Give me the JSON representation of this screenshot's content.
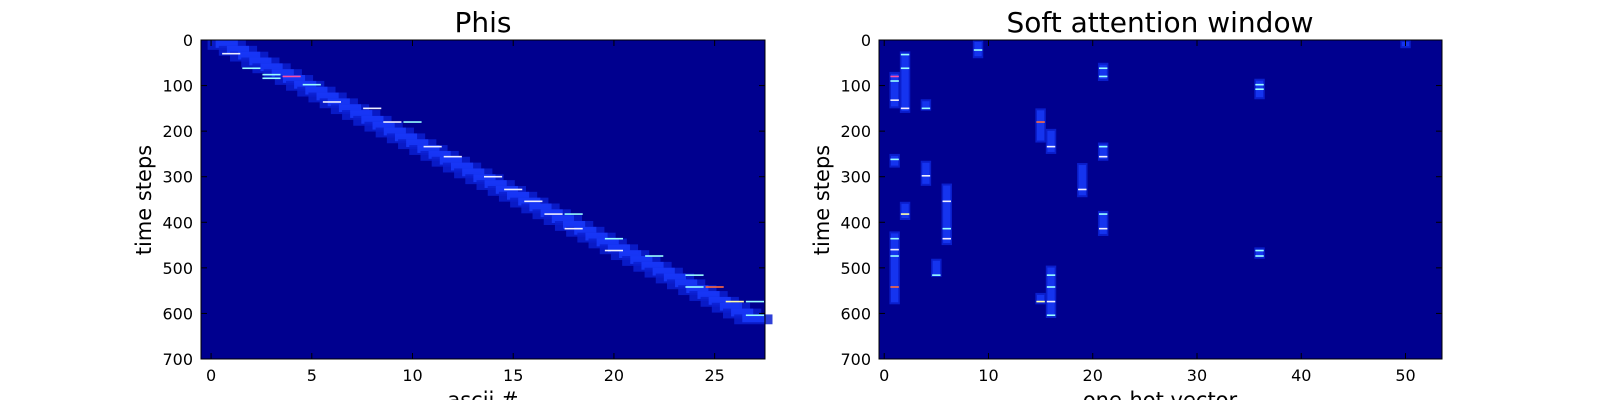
{
  "chart_data": [
    {
      "type": "heatmap",
      "title": "Phis",
      "xlabel": "ascii #",
      "ylabel": "time steps",
      "xlim": [
        -0.5,
        27.5
      ],
      "ylim": [
        700,
        0
      ],
      "xticks": [
        0,
        5,
        10,
        15,
        20,
        25
      ],
      "yticks": [
        0,
        100,
        200,
        300,
        400,
        500,
        600,
        700
      ],
      "colormap": "jet",
      "background_color": "#00008f",
      "band": {
        "start_step": 0,
        "end_step": 615,
        "start_col": 0.5,
        "end_col": 27.2
      },
      "highlights": [
        {
          "x": 1,
          "y": 30,
          "c": "#eef"
        },
        {
          "x": 2,
          "y": 62,
          "c": "#9ff"
        },
        {
          "x": 3,
          "y": 76,
          "c": "#9ff"
        },
        {
          "x": 3,
          "y": 84,
          "c": "#9ff"
        },
        {
          "x": 4,
          "y": 80,
          "c": "#ff4da6"
        },
        {
          "x": 5,
          "y": 98,
          "c": "#9ff"
        },
        {
          "x": 6,
          "y": 136,
          "c": "#eef"
        },
        {
          "x": 8,
          "y": 150,
          "c": "#eef"
        },
        {
          "x": 9,
          "y": 180,
          "c": "#eef"
        },
        {
          "x": 10,
          "y": 180,
          "c": "#9ff"
        },
        {
          "x": 11,
          "y": 234,
          "c": "#eef"
        },
        {
          "x": 12,
          "y": 256,
          "c": "#eef"
        },
        {
          "x": 14,
          "y": 300,
          "c": "#eef"
        },
        {
          "x": 15,
          "y": 328,
          "c": "#eef"
        },
        {
          "x": 16,
          "y": 354,
          "c": "#eef"
        },
        {
          "x": 17,
          "y": 382,
          "c": "#eef"
        },
        {
          "x": 18,
          "y": 382,
          "c": "#9ff"
        },
        {
          "x": 18,
          "y": 414,
          "c": "#eef"
        },
        {
          "x": 20,
          "y": 436,
          "c": "#9ff"
        },
        {
          "x": 20,
          "y": 462,
          "c": "#eef"
        },
        {
          "x": 22,
          "y": 474,
          "c": "#9ff"
        },
        {
          "x": 24,
          "y": 516,
          "c": "#9ff"
        },
        {
          "x": 24,
          "y": 542,
          "c": "#9ff"
        },
        {
          "x": 25,
          "y": 542,
          "c": "#ff6a3d"
        },
        {
          "x": 26,
          "y": 574,
          "c": "#ffffaa"
        },
        {
          "x": 27,
          "y": 574,
          "c": "#9ff"
        },
        {
          "x": 27,
          "y": 604,
          "c": "#9ff"
        }
      ]
    },
    {
      "type": "heatmap",
      "title": "Soft attention window",
      "xlabel": "one-hot vector",
      "ylabel": "time steps",
      "xlim": [
        -0.5,
        53.5
      ],
      "ylim": [
        700,
        0
      ],
      "xticks": [
        0,
        10,
        20,
        30,
        40,
        50
      ],
      "yticks": [
        0,
        100,
        200,
        300,
        400,
        500,
        600,
        700
      ],
      "colormap": "jet",
      "background_color": "#00008f",
      "blobs": [
        {
          "x": 1,
          "y0": 70,
          "y1": 150
        },
        {
          "x": 1,
          "y0": 250,
          "y1": 280
        },
        {
          "x": 1,
          "y0": 420,
          "y1": 580
        },
        {
          "x": 2,
          "y0": 25,
          "y1": 160
        },
        {
          "x": 2,
          "y0": 355,
          "y1": 395
        },
        {
          "x": 4,
          "y0": 130,
          "y1": 155
        },
        {
          "x": 4,
          "y0": 265,
          "y1": 320
        },
        {
          "x": 5,
          "y0": 480,
          "y1": 520
        },
        {
          "x": 6,
          "y0": 315,
          "y1": 450
        },
        {
          "x": 9,
          "y0": 0,
          "y1": 40
        },
        {
          "x": 15,
          "y0": 150,
          "y1": 225
        },
        {
          "x": 15,
          "y0": 555,
          "y1": 580
        },
        {
          "x": 16,
          "y0": 195,
          "y1": 250
        },
        {
          "x": 16,
          "y0": 495,
          "y1": 610
        },
        {
          "x": 19,
          "y0": 270,
          "y1": 345
        },
        {
          "x": 21,
          "y0": 50,
          "y1": 90
        },
        {
          "x": 21,
          "y0": 225,
          "y1": 265
        },
        {
          "x": 21,
          "y0": 375,
          "y1": 430
        },
        {
          "x": 36,
          "y0": 85,
          "y1": 130
        },
        {
          "x": 36,
          "y0": 455,
          "y1": 480
        },
        {
          "x": 50,
          "y0": 0,
          "y1": 18
        }
      ],
      "highlights": [
        {
          "x": 1,
          "y": 80,
          "c": "#ff4da6"
        },
        {
          "x": 1,
          "y": 90,
          "c": "#9ff"
        },
        {
          "x": 1,
          "y": 132,
          "c": "#eef"
        },
        {
          "x": 1,
          "y": 262,
          "c": "#9ff"
        },
        {
          "x": 1,
          "y": 436,
          "c": "#9ff"
        },
        {
          "x": 1,
          "y": 460,
          "c": "#eef"
        },
        {
          "x": 1,
          "y": 474,
          "c": "#9ff"
        },
        {
          "x": 1,
          "y": 542,
          "c": "#ff6a3d"
        },
        {
          "x": 2,
          "y": 32,
          "c": "#9ff"
        },
        {
          "x": 2,
          "y": 62,
          "c": "#9ff"
        },
        {
          "x": 2,
          "y": 150,
          "c": "#eef"
        },
        {
          "x": 2,
          "y": 382,
          "c": "#ffffaa"
        },
        {
          "x": 4,
          "y": 150,
          "c": "#9ff"
        },
        {
          "x": 4,
          "y": 298,
          "c": "#eef"
        },
        {
          "x": 5,
          "y": 516,
          "c": "#9ff"
        },
        {
          "x": 6,
          "y": 354,
          "c": "#eef"
        },
        {
          "x": 6,
          "y": 414,
          "c": "#9ff"
        },
        {
          "x": 6,
          "y": 436,
          "c": "#eef"
        },
        {
          "x": 9,
          "y": 22,
          "c": "#9ff"
        },
        {
          "x": 15,
          "y": 180,
          "c": "#ff6a3d"
        },
        {
          "x": 15,
          "y": 574,
          "c": "#ffffaa"
        },
        {
          "x": 16,
          "y": 234,
          "c": "#eef"
        },
        {
          "x": 16,
          "y": 516,
          "c": "#9ff"
        },
        {
          "x": 16,
          "y": 542,
          "c": "#9ff"
        },
        {
          "x": 16,
          "y": 574,
          "c": "#eef"
        },
        {
          "x": 16,
          "y": 604,
          "c": "#9ff"
        },
        {
          "x": 19,
          "y": 328,
          "c": "#eef"
        },
        {
          "x": 21,
          "y": 62,
          "c": "#9ff"
        },
        {
          "x": 21,
          "y": 80,
          "c": "#9ff"
        },
        {
          "x": 21,
          "y": 234,
          "c": "#9ff"
        },
        {
          "x": 21,
          "y": 256,
          "c": "#eef"
        },
        {
          "x": 21,
          "y": 382,
          "c": "#9ff"
        },
        {
          "x": 21,
          "y": 414,
          "c": "#eef"
        },
        {
          "x": 36,
          "y": 98,
          "c": "#9ff"
        },
        {
          "x": 36,
          "y": 108,
          "c": "#9ff"
        },
        {
          "x": 36,
          "y": 462,
          "c": "#9ff"
        },
        {
          "x": 36,
          "y": 474,
          "c": "#9ff"
        }
      ]
    }
  ]
}
